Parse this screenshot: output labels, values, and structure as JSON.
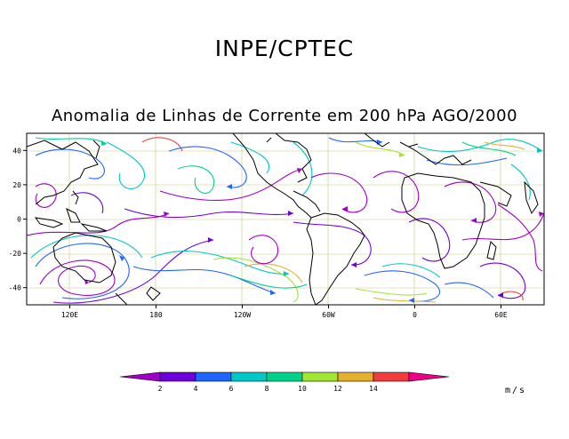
{
  "header": {
    "organization": "INPE/CPTEC",
    "title": "Anomalia de Linhas de Corrente em 200 hPa AGO/2000"
  },
  "map": {
    "lon_range": [
      90,
      450
    ],
    "lat_range": [
      -50,
      50
    ],
    "lat_ticks": [
      {
        "value": 40,
        "label": "40"
      },
      {
        "value": 20,
        "label": "20"
      },
      {
        "value": 0,
        "label": "0"
      },
      {
        "value": -20,
        "label": "-20"
      },
      {
        "value": -40,
        "label": "-40"
      }
    ],
    "lon_ticks": [
      {
        "value": 120,
        "label": "120E"
      },
      {
        "value": 180,
        "label": "180"
      },
      {
        "value": 240,
        "label": "120W"
      },
      {
        "value": 300,
        "label": "60W"
      },
      {
        "value": 360,
        "label": "0"
      },
      {
        "value": 420,
        "label": "60E"
      }
    ],
    "grid": true
  },
  "colorbar": {
    "labels": [
      "2",
      "4",
      "6",
      "8",
      "10",
      "12",
      "14"
    ],
    "colors": [
      "#a000c8",
      "#6e00dc",
      "#1e64ff",
      "#00c8c8",
      "#00d28c",
      "#a0e632",
      "#e6af2d",
      "#f03c3c",
      "#f00082"
    ],
    "units": "m/s"
  }
}
